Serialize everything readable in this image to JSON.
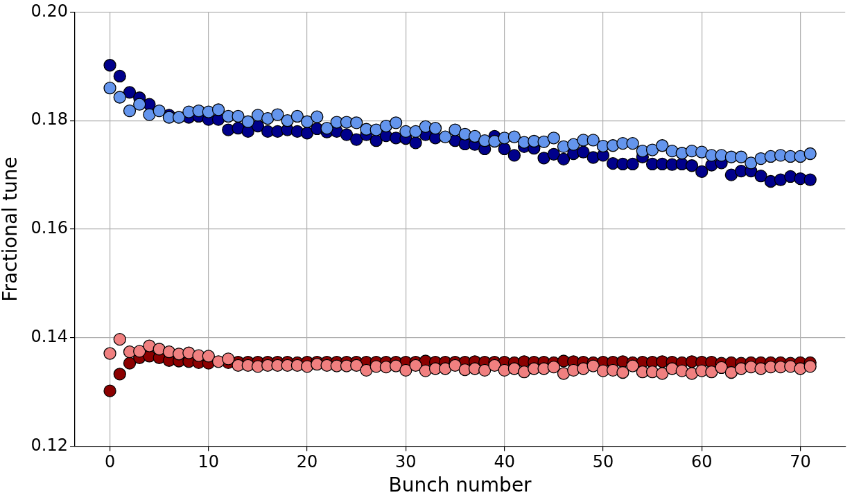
{
  "chart_data": {
    "type": "scatter",
    "xlabel": "Bunch number",
    "ylabel": "Fractional tune",
    "x": [
      0,
      1,
      2,
      3,
      4,
      5,
      6,
      7,
      8,
      9,
      10,
      11,
      12,
      13,
      14,
      15,
      16,
      17,
      18,
      19,
      20,
      21,
      22,
      23,
      24,
      25,
      26,
      27,
      28,
      29,
      30,
      31,
      32,
      33,
      34,
      35,
      36,
      37,
      38,
      39,
      40,
      41,
      42,
      43,
      44,
      45,
      46,
      47,
      48,
      49,
      50,
      51,
      52,
      53,
      54,
      55,
      56,
      57,
      58,
      59,
      60,
      61,
      62,
      63,
      64,
      65,
      66,
      67,
      68,
      69,
      70,
      71
    ],
    "series": [
      {
        "color": "#00008b",
        "values": [
          0.1902,
          0.1882,
          0.1852,
          0.1842,
          0.183,
          null,
          0.181,
          null,
          0.1806,
          0.1808,
          0.1802,
          0.1802,
          0.1783,
          0.1786,
          0.178,
          0.179,
          0.178,
          0.178,
          0.1783,
          0.178,
          0.1777,
          0.1785,
          0.1779,
          0.178,
          0.1774,
          0.1765,
          0.1774,
          0.1763,
          0.1772,
          0.1768,
          0.1767,
          0.1759,
          0.1774,
          0.1768,
          null,
          0.1763,
          0.1757,
          0.1756,
          0.1748,
          0.1771,
          0.1748,
          0.1736,
          0.1752,
          0.1749,
          0.1731,
          0.1738,
          0.1729,
          0.1739,
          0.1742,
          0.1732,
          0.1736,
          0.1721,
          0.172,
          0.172,
          0.1733,
          0.172,
          0.172,
          0.1719,
          0.172,
          0.1717,
          0.1706,
          0.1718,
          0.1722,
          0.17,
          0.1707,
          0.1707,
          0.1698,
          0.1688,
          0.1691,
          0.1697,
          0.1693,
          0.1691
        ]
      },
      {
        "color": "#6495ed",
        "values": [
          0.186,
          0.1843,
          0.1818,
          0.183,
          0.1811,
          0.1818,
          0.1806,
          0.1806,
          0.1816,
          0.1818,
          0.1816,
          0.182,
          0.1808,
          0.1808,
          0.1798,
          0.181,
          0.1804,
          0.1811,
          0.18,
          0.1808,
          0.1798,
          0.1807,
          0.1786,
          0.1797,
          0.1797,
          0.1796,
          0.1784,
          0.1783,
          0.179,
          0.1796,
          0.178,
          0.178,
          0.1789,
          0.1786,
          0.177,
          0.1783,
          0.1775,
          0.1771,
          0.1763,
          0.1762,
          0.1768,
          0.177,
          0.176,
          0.1762,
          0.1761,
          0.1768,
          0.1752,
          0.1756,
          0.1764,
          0.1764,
          0.1753,
          0.1754,
          0.1758,
          0.1758,
          0.1744,
          0.1746,
          0.1754,
          0.1744,
          0.174,
          0.1744,
          0.1742,
          0.1736,
          0.1736,
          0.1733,
          0.1733,
          0.1722,
          0.173,
          0.1734,
          0.1736,
          0.1734,
          0.1734,
          0.1739
        ]
      },
      {
        "color": "#8b0000",
        "values": [
          0.1302,
          0.1333,
          0.1353,
          0.1363,
          0.1366,
          0.1363,
          0.1358,
          0.1357,
          0.1356,
          0.1354,
          0.1353,
          null,
          0.1354,
          0.1355,
          0.1355,
          0.1355,
          0.1355,
          0.1355,
          0.1355,
          0.1354,
          0.1355,
          0.1355,
          0.1355,
          0.1355,
          0.1355,
          0.1355,
          0.1355,
          0.1355,
          0.1355,
          0.1355,
          0.1355,
          0.1355,
          0.1357,
          0.1355,
          0.1355,
          0.1355,
          0.1355,
          0.1356,
          0.1355,
          0.1355,
          0.1355,
          0.1354,
          0.1356,
          0.1355,
          0.1355,
          0.1354,
          0.1357,
          0.1356,
          0.1355,
          0.1354,
          0.1355,
          0.1355,
          0.1356,
          0.1354,
          0.1355,
          0.1355,
          0.1356,
          0.1355,
          0.1354,
          0.1356,
          0.1355,
          0.1355,
          0.1353,
          0.1354,
          0.1353,
          0.1354,
          0.1354,
          0.1354,
          0.1354,
          0.1353,
          0.1354,
          0.1354
        ]
      },
      {
        "color": "#f08080",
        "values": [
          0.1371,
          0.1397,
          0.1374,
          0.1375,
          0.1385,
          0.1379,
          0.1374,
          0.137,
          0.1372,
          0.1367,
          0.1366,
          0.1356,
          0.1361,
          0.1349,
          0.1349,
          0.1347,
          0.1349,
          0.1349,
          0.1349,
          0.1349,
          0.1347,
          0.1351,
          0.1349,
          0.1348,
          0.1348,
          0.1349,
          0.134,
          0.1347,
          0.1346,
          0.1348,
          0.134,
          0.1349,
          0.1339,
          0.1343,
          0.1343,
          0.1349,
          0.1341,
          0.1343,
          0.134,
          0.1349,
          0.134,
          0.1343,
          0.1337,
          0.1343,
          0.1343,
          0.1346,
          0.1334,
          0.134,
          0.1343,
          0.1348,
          0.1339,
          0.134,
          0.1336,
          0.1348,
          0.1337,
          0.1337,
          0.1334,
          0.1343,
          0.1339,
          0.1334,
          0.1339,
          0.1337,
          0.1345,
          0.1336,
          0.1343,
          0.1346,
          0.1343,
          0.1346,
          0.1346,
          0.1347,
          0.1343,
          0.1347
        ]
      }
    ],
    "xlim": [
      -3.55,
      74.55
    ],
    "ylim": [
      0.12,
      0.2
    ],
    "xticks": [
      0,
      10,
      20,
      30,
      40,
      50,
      60,
      70
    ],
    "yticks": [
      {
        "value": 0.12,
        "label": "0.12"
      },
      {
        "value": 0.14,
        "label": "0.14"
      },
      {
        "value": 0.16,
        "label": "0.16"
      },
      {
        "value": 0.18,
        "label": "0.18"
      },
      {
        "value": 0.2,
        "label": "0.20"
      }
    ],
    "grid": true,
    "legend": false,
    "marker": "circle"
  }
}
